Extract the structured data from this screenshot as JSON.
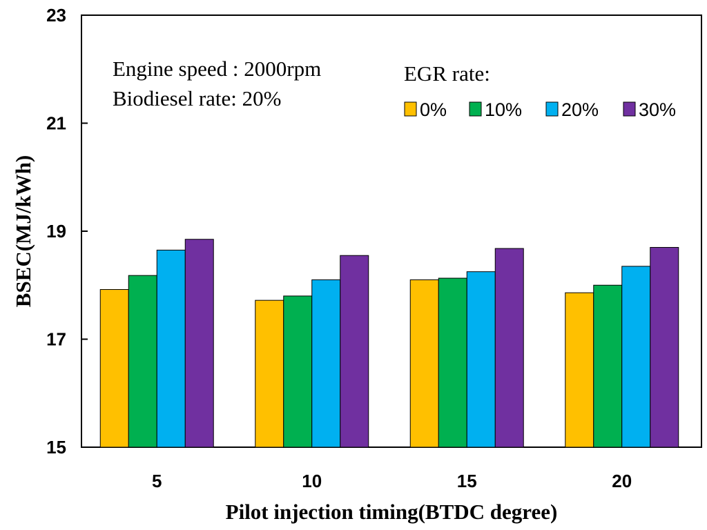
{
  "chart_data": {
    "type": "bar",
    "categories": [
      "5",
      "10",
      "15",
      "20"
    ],
    "series": [
      {
        "name": "0%",
        "color": "#FFC000",
        "values": [
          17.92,
          17.72,
          18.1,
          17.86
        ]
      },
      {
        "name": "10%",
        "color": "#00B050",
        "values": [
          18.18,
          17.8,
          18.13,
          18.0
        ]
      },
      {
        "name": "20%",
        "color": "#00B0F0",
        "values": [
          18.65,
          18.1,
          18.25,
          18.35
        ]
      },
      {
        "name": "30%",
        "color": "#7030A0",
        "values": [
          18.85,
          18.55,
          18.68,
          18.7
        ]
      }
    ],
    "xlabel": "Pilot injection timing(BTDC degree)",
    "ylabel": "BSEC(MJ/kWh)",
    "ylim": [
      15,
      23
    ],
    "yticks": [
      "15",
      "17",
      "19",
      "21",
      "23"
    ],
    "grid": false,
    "legend": {
      "title": "EGR rate:",
      "position": "top-right"
    },
    "annotations": [
      "Engine speed : 2000rpm",
      "Biodiesel rate: 20%"
    ]
  }
}
